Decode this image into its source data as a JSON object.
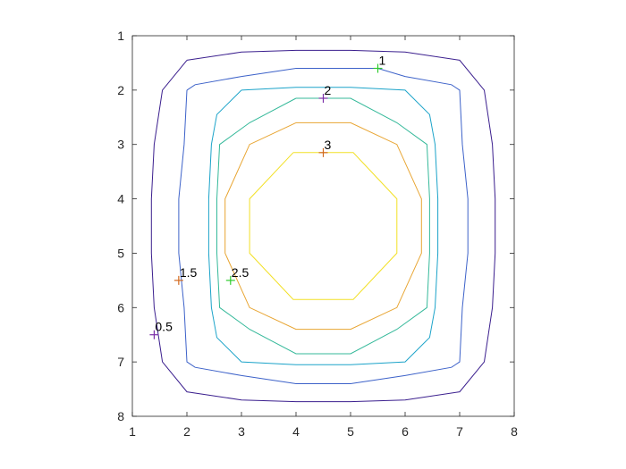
{
  "chart_data": {
    "type": "contour",
    "title": "",
    "xlabel": "",
    "ylabel": "",
    "xlim": [
      1,
      8
    ],
    "ylim": [
      1,
      8
    ],
    "y_direction": "reverse",
    "grid": false,
    "box": true,
    "x_ticks": [
      {
        "value": 1,
        "label": "1"
      },
      {
        "value": 2,
        "label": "2"
      },
      {
        "value": 3,
        "label": "3"
      },
      {
        "value": 4,
        "label": "4"
      },
      {
        "value": 5,
        "label": "5"
      },
      {
        "value": 6,
        "label": "6"
      },
      {
        "value": 7,
        "label": "7"
      },
      {
        "value": 8,
        "label": "8"
      }
    ],
    "y_ticks": [
      {
        "value": 1,
        "label": "1"
      },
      {
        "value": 2,
        "label": "2"
      },
      {
        "value": 3,
        "label": "3"
      },
      {
        "value": 4,
        "label": "4"
      },
      {
        "value": 5,
        "label": "5"
      },
      {
        "value": 6,
        "label": "6"
      },
      {
        "value": 7,
        "label": "7"
      },
      {
        "value": 8,
        "label": "8"
      }
    ],
    "contours": [
      {
        "level": 0.5,
        "color": "#3b1f8e",
        "points": [
          [
            2.0,
            1.45
          ],
          [
            3.0,
            1.3
          ],
          [
            4.0,
            1.27
          ],
          [
            5.0,
            1.27
          ],
          [
            6.0,
            1.3
          ],
          [
            7.0,
            1.45
          ],
          [
            7.45,
            2.0
          ],
          [
            7.6,
            3.0
          ],
          [
            7.65,
            4.0
          ],
          [
            7.65,
            5.0
          ],
          [
            7.6,
            6.0
          ],
          [
            7.45,
            7.0
          ],
          [
            7.0,
            7.55
          ],
          [
            6.0,
            7.7
          ],
          [
            5.0,
            7.73
          ],
          [
            4.0,
            7.73
          ],
          [
            3.0,
            7.7
          ],
          [
            2.0,
            7.55
          ],
          [
            1.55,
            7.0
          ],
          [
            1.4,
            6.0
          ],
          [
            1.35,
            5.0
          ],
          [
            1.35,
            4.0
          ],
          [
            1.4,
            3.0
          ],
          [
            1.55,
            2.0
          ],
          [
            2.0,
            1.45
          ]
        ]
      },
      {
        "level": 1,
        "color": "#3d62c9",
        "points": [
          [
            2.0,
            2.0
          ],
          [
            2.15,
            1.9
          ],
          [
            3.0,
            1.75
          ],
          [
            4.0,
            1.6
          ],
          [
            5.0,
            1.6
          ],
          [
            5.5,
            1.6
          ],
          [
            6.0,
            1.75
          ],
          [
            6.85,
            1.9
          ],
          [
            7.0,
            2.0
          ],
          [
            7.05,
            3.0
          ],
          [
            7.15,
            4.0
          ],
          [
            7.15,
            5.0
          ],
          [
            7.05,
            6.0
          ],
          [
            7.0,
            7.0
          ],
          [
            6.85,
            7.1
          ],
          [
            6.0,
            7.25
          ],
          [
            5.0,
            7.4
          ],
          [
            4.0,
            7.4
          ],
          [
            3.0,
            7.25
          ],
          [
            2.15,
            7.1
          ],
          [
            2.0,
            7.0
          ],
          [
            1.95,
            6.0
          ],
          [
            1.85,
            5.0
          ],
          [
            1.85,
            4.0
          ],
          [
            1.95,
            3.0
          ],
          [
            2.0,
            2.0
          ]
        ]
      },
      {
        "level": 1.5,
        "color": "#1ba3c9",
        "points": [
          [
            3.0,
            2.0
          ],
          [
            4.0,
            1.95
          ],
          [
            5.0,
            1.95
          ],
          [
            6.0,
            2.0
          ],
          [
            6.45,
            2.45
          ],
          [
            6.55,
            3.0
          ],
          [
            6.6,
            4.0
          ],
          [
            6.6,
            5.0
          ],
          [
            6.55,
            6.0
          ],
          [
            6.45,
            6.55
          ],
          [
            6.0,
            7.0
          ],
          [
            5.0,
            7.05
          ],
          [
            4.0,
            7.05
          ],
          [
            3.0,
            7.0
          ],
          [
            2.55,
            6.55
          ],
          [
            2.45,
            6.0
          ],
          [
            2.4,
            5.0
          ],
          [
            2.4,
            4.0
          ],
          [
            2.45,
            3.0
          ],
          [
            2.55,
            2.45
          ],
          [
            3.0,
            2.0
          ]
        ]
      },
      {
        "level": 2,
        "color": "#35b99a",
        "points": [
          [
            4.0,
            2.15
          ],
          [
            5.0,
            2.15
          ],
          [
            5.85,
            2.6
          ],
          [
            6.4,
            3.0
          ],
          [
            6.45,
            4.0
          ],
          [
            6.45,
            5.0
          ],
          [
            6.4,
            6.0
          ],
          [
            5.85,
            6.4
          ],
          [
            5.0,
            6.85
          ],
          [
            4.0,
            6.85
          ],
          [
            3.15,
            6.4
          ],
          [
            2.6,
            6.0
          ],
          [
            2.55,
            5.0
          ],
          [
            2.55,
            4.0
          ],
          [
            2.6,
            3.0
          ],
          [
            3.15,
            2.6
          ],
          [
            4.0,
            2.15
          ]
        ]
      },
      {
        "level": 2.5,
        "color": "#e8a532",
        "points": [
          [
            4.0,
            2.6
          ],
          [
            5.0,
            2.6
          ],
          [
            5.85,
            3.0
          ],
          [
            6.3,
            4.0
          ],
          [
            6.3,
            5.0
          ],
          [
            5.85,
            6.0
          ],
          [
            5.0,
            6.4
          ],
          [
            4.0,
            6.4
          ],
          [
            3.15,
            6.0
          ],
          [
            2.7,
            5.0
          ],
          [
            2.7,
            4.0
          ],
          [
            3.15,
            3.0
          ],
          [
            4.0,
            2.6
          ]
        ]
      },
      {
        "level": 3,
        "color": "#f2e026",
        "points": [
          [
            3.95,
            3.15
          ],
          [
            5.05,
            3.15
          ],
          [
            5.85,
            4.0
          ],
          [
            5.85,
            5.0
          ],
          [
            5.05,
            5.85
          ],
          [
            3.95,
            5.85
          ],
          [
            3.15,
            5.0
          ],
          [
            3.15,
            4.0
          ],
          [
            3.95,
            3.15
          ]
        ]
      }
    ],
    "labels": [
      {
        "text": "1",
        "x": 5.5,
        "y": 1.6,
        "marker_color": "#2ecc2e"
      },
      {
        "text": "2",
        "x": 4.5,
        "y": 2.15,
        "marker_color": "#7a2ea8"
      },
      {
        "text": "3",
        "x": 4.5,
        "y": 3.15,
        "marker_color": "#d2691e"
      },
      {
        "text": "1.5",
        "x": 1.85,
        "y": 5.5,
        "marker_color": "#d2691e"
      },
      {
        "text": "2.5",
        "x": 2.8,
        "y": 5.5,
        "marker_color": "#2ecc2e"
      },
      {
        "text": "0.5",
        "x": 1.4,
        "y": 6.5,
        "marker_color": "#7a2ea8"
      }
    ]
  }
}
